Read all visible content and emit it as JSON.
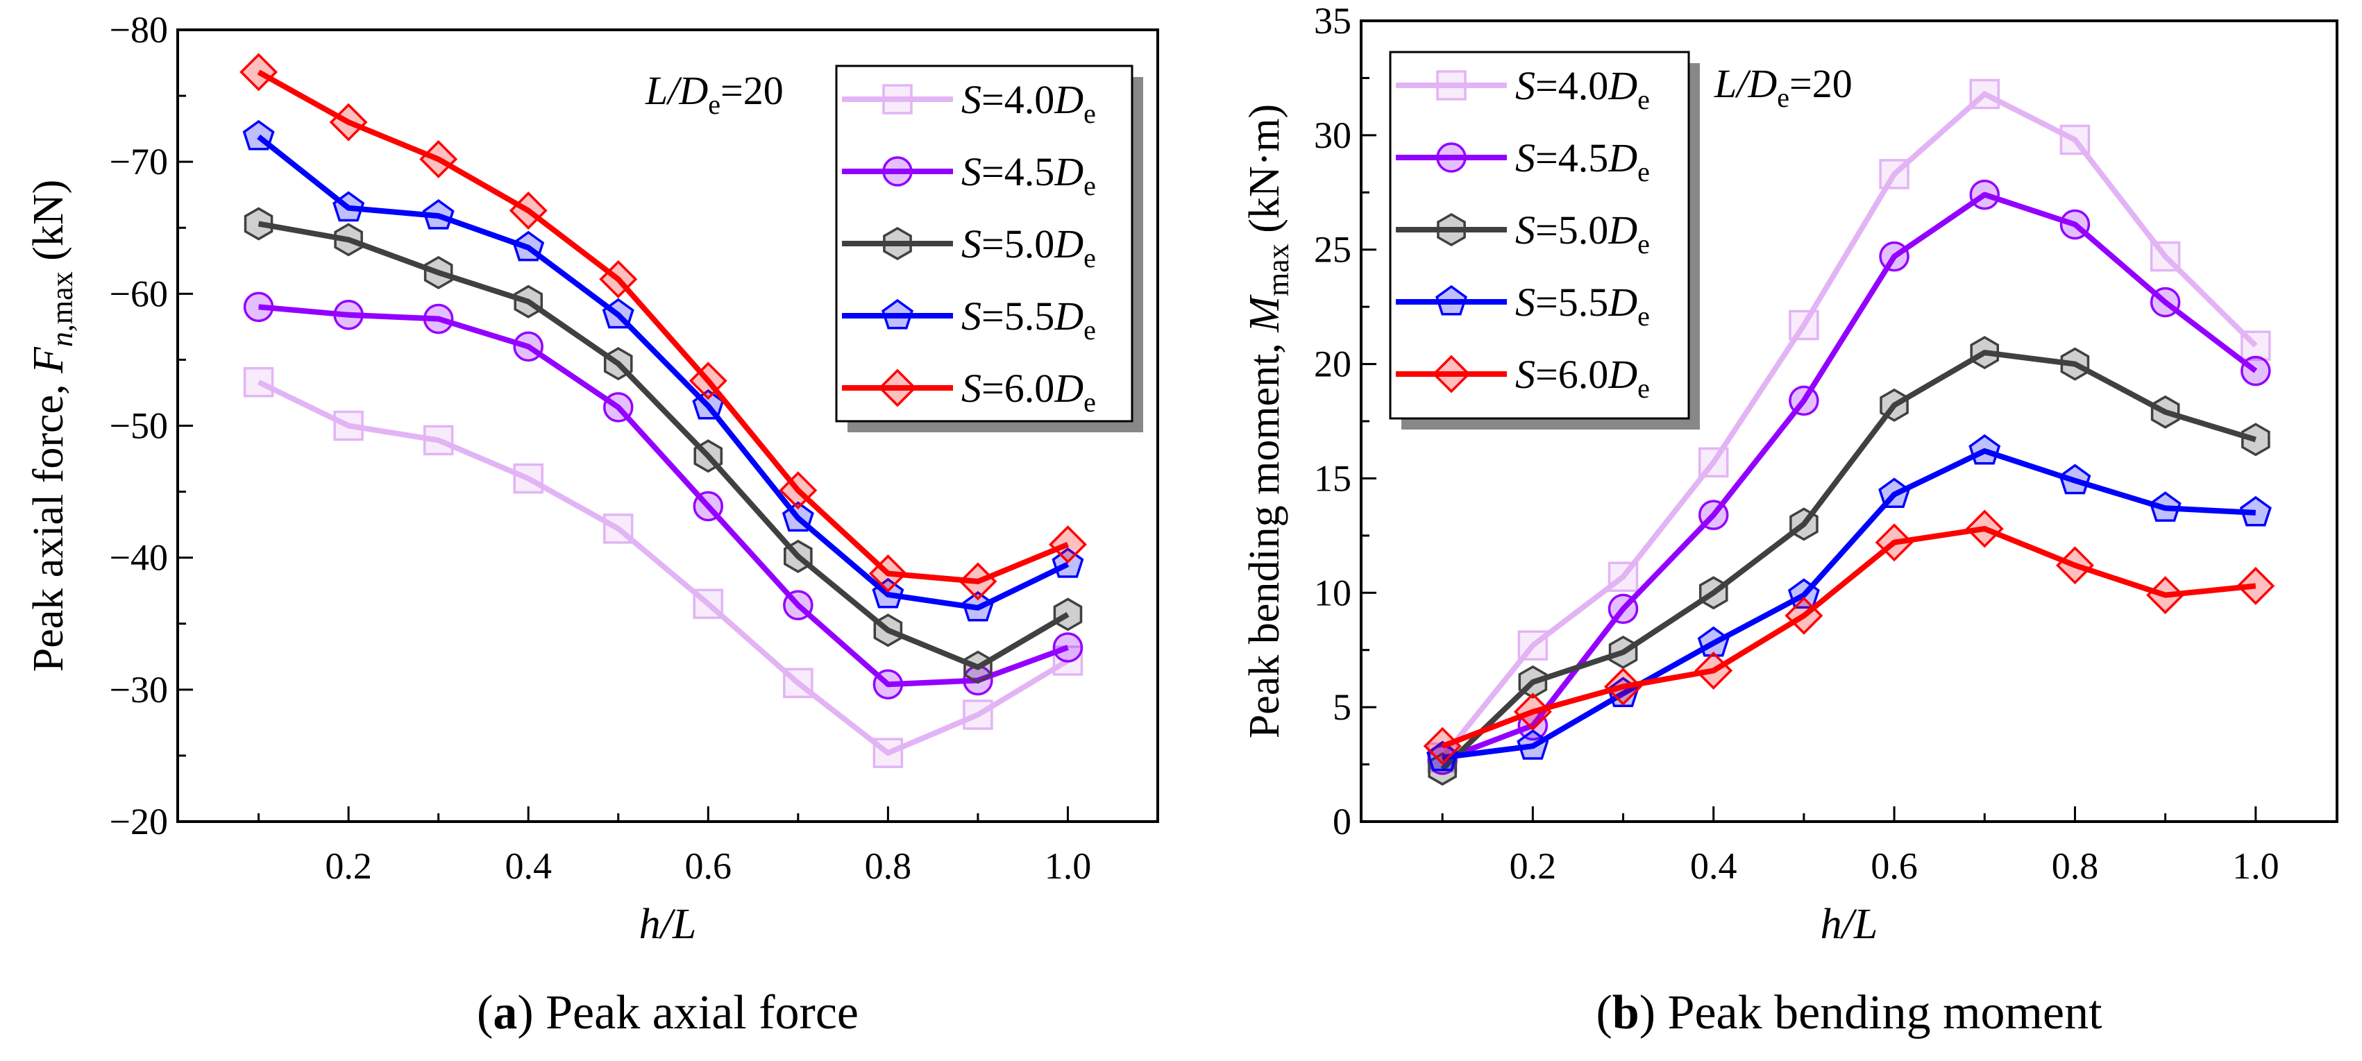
{
  "chart_data": [
    {
      "type": "line",
      "panel": "a",
      "caption_letter": "a",
      "caption_text": "Peak axial force",
      "annotation": "L/De=20",
      "xlabel": "h/L",
      "ylabel": "Peak axial force, Fn,max (kN)",
      "xlim": [
        0.01,
        1.1
      ],
      "ylim": [
        -80,
        -20
      ],
      "y_inverted": true,
      "xticks": [
        0.2,
        0.4,
        0.6,
        0.8,
        1.0
      ],
      "yticks": [
        -80,
        -70,
        -60,
        -50,
        -40,
        -30,
        -20
      ],
      "legend_position": "top-right",
      "x": [
        0.1,
        0.2,
        0.3,
        0.4,
        0.5,
        0.6,
        0.7,
        0.8,
        0.9,
        1.0
      ],
      "series": [
        {
          "name": "S=4.0De",
          "spacing": "4.0",
          "marker": "square",
          "color": "#E2B4F5",
          "values": [
            -53.3,
            -50.0,
            -48.9,
            -46.0,
            -42.2,
            -36.5,
            -30.5,
            -25.2,
            -28.1,
            -32.2
          ]
        },
        {
          "name": "S=4.5De",
          "spacing": "4.5",
          "marker": "circle",
          "color": "#9400FF",
          "values": [
            -59.0,
            -58.4,
            -58.1,
            -56.0,
            -51.4,
            -43.9,
            -36.4,
            -30.4,
            -30.7,
            -33.2
          ]
        },
        {
          "name": "S=5.0De",
          "spacing": "5.0",
          "marker": "hexagon",
          "color": "#404040",
          "values": [
            -65.3,
            -64.1,
            -61.6,
            -59.4,
            -54.7,
            -47.7,
            -40.1,
            -34.5,
            -31.7,
            -35.7
          ]
        },
        {
          "name": "S=5.5De",
          "spacing": "5.5",
          "marker": "pentagon",
          "color": "#0000FF",
          "values": [
            -71.9,
            -66.5,
            -65.9,
            -63.5,
            -58.4,
            -51.5,
            -43.0,
            -37.2,
            -36.2,
            -39.5
          ]
        },
        {
          "name": "S=6.0De",
          "spacing": "6.0",
          "marker": "diamond",
          "color": "#FF0000",
          "values": [
            -76.8,
            -73.0,
            -70.2,
            -66.3,
            -61.1,
            -53.4,
            -45.1,
            -38.8,
            -38.2,
            -41.0
          ]
        }
      ]
    },
    {
      "type": "line",
      "panel": "b",
      "caption_letter": "b",
      "caption_text": "Peak bending moment",
      "annotation": "L/De=20",
      "xlabel": "h/L",
      "ylabel": "Peak bending moment, Mmax (kN·m)",
      "xlim": [
        0.01,
        1.09
      ],
      "ylim": [
        0,
        35
      ],
      "y_inverted": false,
      "xticks": [
        0.2,
        0.4,
        0.6,
        0.8,
        1.0
      ],
      "yticks": [
        0,
        5,
        10,
        15,
        20,
        25,
        30,
        35
      ],
      "legend_position": "top-left",
      "x": [
        0.1,
        0.2,
        0.3,
        0.4,
        0.5,
        0.6,
        0.7,
        0.8,
        0.9,
        1.0
      ],
      "series": [
        {
          "name": "S=4.0De",
          "spacing": "4.0",
          "marker": "square",
          "color": "#E2B4F5",
          "values": [
            2.8,
            7.7,
            10.7,
            15.7,
            21.7,
            28.3,
            31.8,
            29.8,
            24.7,
            20.8
          ]
        },
        {
          "name": "S=4.5De",
          "spacing": "4.5",
          "marker": "circle",
          "color": "#9400FF",
          "values": [
            2.7,
            4.2,
            9.3,
            13.4,
            18.4,
            24.7,
            27.4,
            26.1,
            22.7,
            19.7
          ]
        },
        {
          "name": "S=5.0De",
          "spacing": "5.0",
          "marker": "hexagon",
          "color": "#404040",
          "values": [
            2.3,
            6.1,
            7.4,
            10.0,
            13.0,
            18.2,
            20.5,
            20.0,
            17.9,
            16.7
          ]
        },
        {
          "name": "S=5.5De",
          "spacing": "5.5",
          "marker": "pentagon",
          "color": "#0000FF",
          "values": [
            2.8,
            3.3,
            5.6,
            7.8,
            9.9,
            14.3,
            16.2,
            14.9,
            13.7,
            13.5
          ]
        },
        {
          "name": "S=6.0De",
          "spacing": "6.0",
          "marker": "diamond",
          "color": "#FF0000",
          "values": [
            3.3,
            4.8,
            5.9,
            6.6,
            9.0,
            12.2,
            12.8,
            11.2,
            9.9,
            10.3
          ]
        }
      ]
    }
  ]
}
